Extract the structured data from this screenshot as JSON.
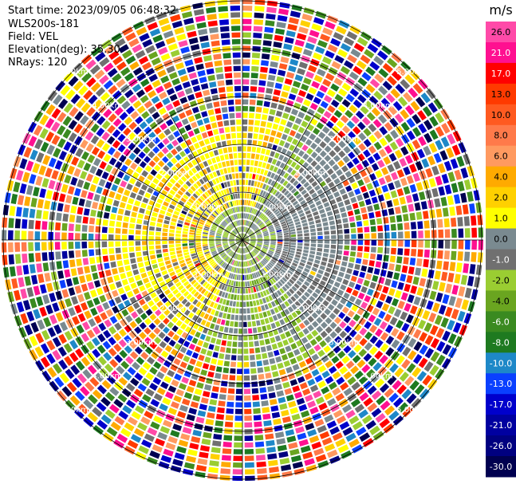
{
  "header": {
    "start_time": "Start time: 2023/09/05 06:48:32",
    "instrument": "WLS200s-181",
    "field": "Field: VEL",
    "elevation": "Elevation(deg): 35.30",
    "nrays": "NRays: 120"
  },
  "chart_data": {
    "type": "heatmap",
    "subtype": "polar-ppi",
    "field": "VEL",
    "unit": "m/s",
    "n_rays": 120,
    "elevation_deg": 35.3,
    "range_rings_km": [
      1.0,
      2.0,
      3.0,
      4.0,
      5.0
    ],
    "ring_labels": [
      {
        "km": 1.0,
        "text": "1.00km"
      },
      {
        "km": 2.0,
        "text": "2.00km"
      },
      {
        "km": 3.0,
        "text": "3.00km"
      },
      {
        "km": 4.0,
        "text": "4.00km"
      },
      {
        "km": 5.0,
        "text": "5.00km"
      }
    ],
    "max_range_km": 6.3,
    "colorbar": {
      "title": "m/s",
      "ticks": [
        "26.0",
        "21.0",
        "17.0",
        "13.0",
        "10.0",
        "8.0",
        "6.0",
        "4.0",
        "2.0",
        "1.0",
        "0.0",
        "-1.0",
        "-2.0",
        "-4.0",
        "-6.0",
        "-8.0",
        "-10.0",
        "-13.0",
        "-17.0",
        "-21.0",
        "-26.0",
        "-30.0"
      ],
      "colors": [
        "#ff4aa8",
        "#ff1090",
        "#ff0000",
        "#ff3a00",
        "#ff5a20",
        "#ff7a4a",
        "#ff9a60",
        "#ffaa00",
        "#ffd000",
        "#ffff00",
        "#7a8a90",
        "#707070",
        "#9acd32",
        "#6aa520",
        "#3a8a20",
        "#1e7a20",
        "#1e88c8",
        "#0a40ff",
        "#0000cc",
        "#0000a0",
        "#000080",
        "#000050"
      ]
    },
    "velocity_pattern": {
      "near_field_km": 3.0,
      "positive_sector_deg": [
        200,
        20
      ],
      "negative_sector_deg": [
        20,
        200
      ],
      "near_zero_band_deg": [
        40,
        140
      ],
      "far_field": "noisy"
    }
  }
}
